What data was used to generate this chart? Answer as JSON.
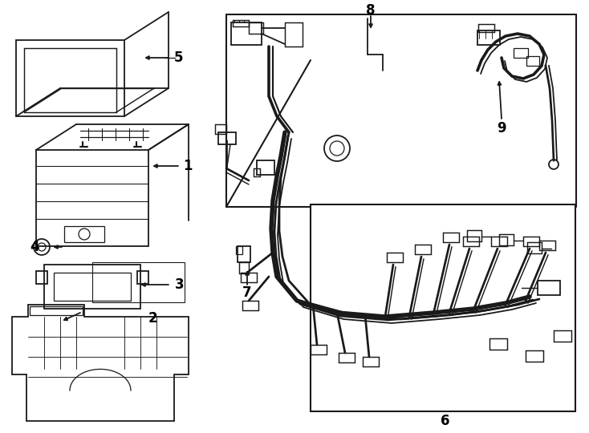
{
  "background_color": "#ffffff",
  "line_color": "#1a1a1a",
  "text_color": "#000000",
  "fig_width": 7.34,
  "fig_height": 5.4,
  "dpi": 100,
  "lw": 1.3
}
